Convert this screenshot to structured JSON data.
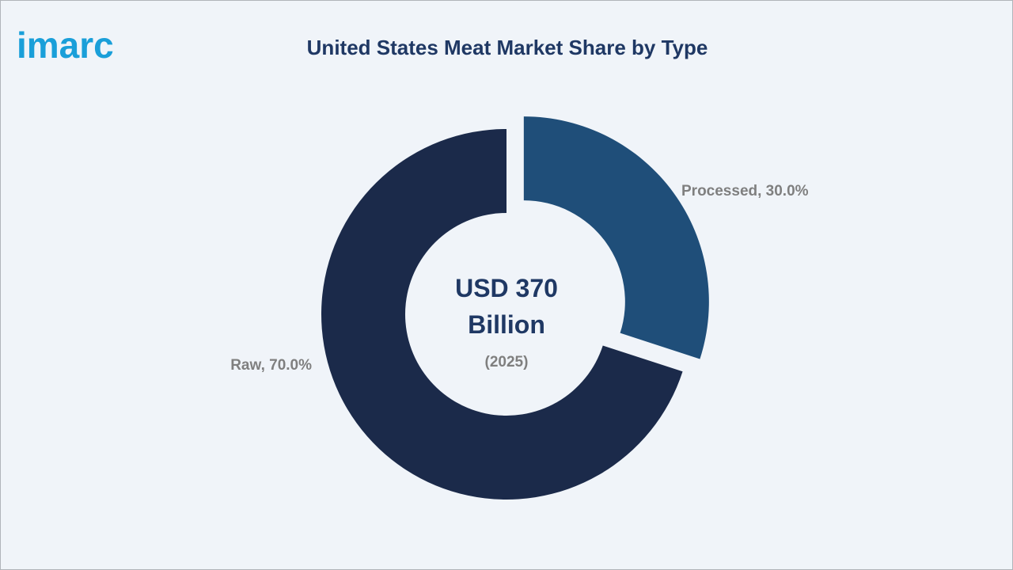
{
  "header": {
    "logo": "imarc"
  },
  "chart_data": {
    "type": "pie",
    "title": "United States Meat Market Share by Type",
    "values": [
      30,
      70
    ],
    "value_labels": [
      "Processed, 30.0%",
      "Raw, 70.0%"
    ],
    "colors": [
      "#1f4e79",
      "#1b2a4a"
    ],
    "explode": [
      true,
      false
    ],
    "donut": true,
    "center_text": "USD 370 Billion",
    "center_subtext": "(2025)"
  }
}
